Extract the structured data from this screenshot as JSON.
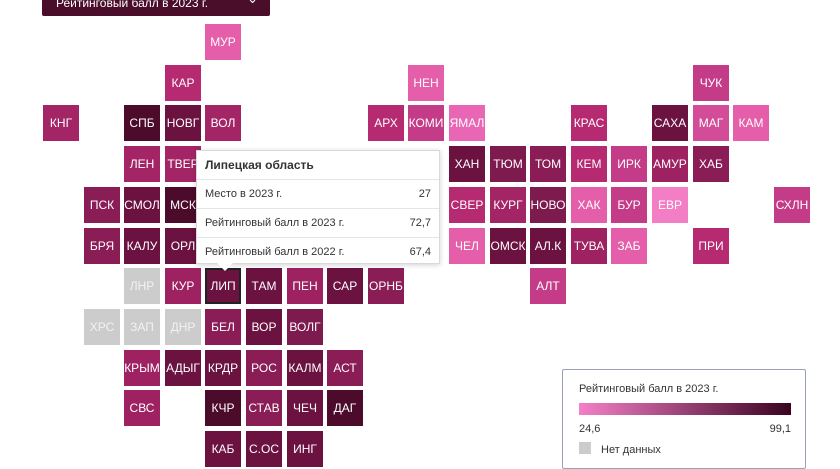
{
  "dropdown": {
    "label": "Рейтинговый балл в 2023 г."
  },
  "tooltip": {
    "title": "Липецкая область",
    "rows": [
      {
        "key": "Место в 2023 г.",
        "value": "27"
      },
      {
        "key": "Рейтинговый балл в 2023 г.",
        "value": "72,7"
      },
      {
        "key": "Рейтинговый балл в 2022 г.",
        "value": "67,4"
      }
    ]
  },
  "legend": {
    "title": "Рейтинговый балл в 2023 г.",
    "min": "24,6",
    "max": "99,1",
    "no_data": "Нет данных",
    "colors": {
      "low": "#f57fc8",
      "high": "#3a0320",
      "no_data": "#cccccc"
    }
  },
  "regions": [
    {
      "code": "МУР",
      "col": 5,
      "row": 0,
      "color": "#e55ea9"
    },
    {
      "code": "КАР",
      "col": 4,
      "row": 1,
      "color": "#b62a72"
    },
    {
      "code": "НЕН",
      "col": 10,
      "row": 1,
      "color": "#e55ea9"
    },
    {
      "code": "ЧУК",
      "col": 17,
      "row": 1,
      "color": "#c43b87"
    },
    {
      "code": "КНГ",
      "col": 1,
      "row": 2,
      "color": "#a42566"
    },
    {
      "code": "СПБ",
      "col": 3,
      "row": 2,
      "color": "#4d0b2c"
    },
    {
      "code": "НОВГ",
      "col": 4,
      "row": 2,
      "color": "#6b1240"
    },
    {
      "code": "ВОЛ",
      "col": 5,
      "row": 2,
      "color": "#a42566"
    },
    {
      "code": "АРХ",
      "col": 9,
      "row": 2,
      "color": "#b62a72"
    },
    {
      "code": "КОМИ",
      "col": 10,
      "row": 2,
      "color": "#c43b87"
    },
    {
      "code": "ЯМАЛ",
      "col": 11,
      "row": 2,
      "color": "#e866b3"
    },
    {
      "code": "КРАС",
      "col": 14,
      "row": 2,
      "color": "#b62a72"
    },
    {
      "code": "САХА",
      "col": 16,
      "row": 2,
      "color": "#6b1240"
    },
    {
      "code": "МАГ",
      "col": 17,
      "row": 2,
      "color": "#d24c97"
    },
    {
      "code": "КАМ",
      "col": 18,
      "row": 2,
      "color": "#e55ea9"
    },
    {
      "code": "ЛЕН",
      "col": 3,
      "row": 3,
      "color": "#a42566"
    },
    {
      "code": "ТВЕР",
      "col": 4,
      "row": 3,
      "color": "#a42566"
    },
    {
      "code": "ХАН",
      "col": 11,
      "row": 3,
      "color": "#6b1240"
    },
    {
      "code": "ТЮМ",
      "col": 12,
      "row": 3,
      "color": "#7d1a4e"
    },
    {
      "code": "ТОМ",
      "col": 13,
      "row": 3,
      "color": "#8a1d56"
    },
    {
      "code": "КЕМ",
      "col": 14,
      "row": 3,
      "color": "#b62a72"
    },
    {
      "code": "ИРК",
      "col": 15,
      "row": 3,
      "color": "#c43b87"
    },
    {
      "code": "АМУР",
      "col": 16,
      "row": 3,
      "color": "#9e2262"
    },
    {
      "code": "ХАБ",
      "col": 17,
      "row": 3,
      "color": "#8a1d56"
    },
    {
      "code": "ПСК",
      "col": 2,
      "row": 4,
      "color": "#8a1d56"
    },
    {
      "code": "СМОЛ",
      "col": 3,
      "row": 4,
      "color": "#6b1240"
    },
    {
      "code": "МСК",
      "col": 4,
      "row": 4,
      "color": "#4d0b2c"
    },
    {
      "code": "СВЕР",
      "col": 11,
      "row": 4,
      "color": "#b62a72"
    },
    {
      "code": "КУРГ",
      "col": 12,
      "row": 4,
      "color": "#a42566"
    },
    {
      "code": "НОВО",
      "col": 13,
      "row": 4,
      "color": "#7d1a4e"
    },
    {
      "code": "ХАК",
      "col": 14,
      "row": 4,
      "color": "#e55ea9"
    },
    {
      "code": "БУР",
      "col": 15,
      "row": 4,
      "color": "#c43b87"
    },
    {
      "code": "ЕВР",
      "col": 16,
      "row": 4,
      "color": "#f37ec6"
    },
    {
      "code": "СХЛН",
      "col": 19,
      "row": 4,
      "color": "#c43b87"
    },
    {
      "code": "БРЯ",
      "col": 2,
      "row": 5,
      "color": "#8a1d56"
    },
    {
      "code": "КАЛУ",
      "col": 3,
      "row": 5,
      "color": "#6b1240"
    },
    {
      "code": "ОРЛ",
      "col": 4,
      "row": 5,
      "color": "#6b1240"
    },
    {
      "code": "ЧЕЛ",
      "col": 11,
      "row": 5,
      "color": "#e55ea9"
    },
    {
      "code": "ОМСК",
      "col": 12,
      "row": 5,
      "color": "#6b1240"
    },
    {
      "code": "АЛ.К",
      "col": 13,
      "row": 5,
      "color": "#6b1240"
    },
    {
      "code": "ТУВА",
      "col": 14,
      "row": 5,
      "color": "#9e2262"
    },
    {
      "code": "ЗАБ",
      "col": 15,
      "row": 5,
      "color": "#e55ea9"
    },
    {
      "code": "ПРИ",
      "col": 17,
      "row": 5,
      "color": "#b62a72"
    },
    {
      "code": "ЛНР",
      "col": 3,
      "row": 6,
      "color": "#cccccc"
    },
    {
      "code": "КУР",
      "col": 4,
      "row": 6,
      "color": "#9e2262"
    },
    {
      "code": "ЛИП",
      "col": 5,
      "row": 6,
      "color": "#6b1240"
    },
    {
      "code": "ТАМ",
      "col": 6,
      "row": 6,
      "color": "#6b1240"
    },
    {
      "code": "ПЕН",
      "col": 7,
      "row": 6,
      "color": "#9e2262"
    },
    {
      "code": "САР",
      "col": 8,
      "row": 6,
      "color": "#6b1240"
    },
    {
      "code": "ОРНБ",
      "col": 9,
      "row": 6,
      "color": "#8a1d56"
    },
    {
      "code": "АЛТ",
      "col": 13,
      "row": 6,
      "color": "#c43b87"
    },
    {
      "code": "ХРС",
      "col": 2,
      "row": 7,
      "color": "#cccccc"
    },
    {
      "code": "ЗАП",
      "col": 3,
      "row": 7,
      "color": "#cccccc"
    },
    {
      "code": "ДНР",
      "col": 4,
      "row": 7,
      "color": "#cccccc"
    },
    {
      "code": "БЕЛ",
      "col": 5,
      "row": 7,
      "color": "#8a1d56"
    },
    {
      "code": "ВОР",
      "col": 6,
      "row": 7,
      "color": "#6b1240"
    },
    {
      "code": "ВОЛГ",
      "col": 7,
      "row": 7,
      "color": "#7d1a4e"
    },
    {
      "code": "КРЫМ",
      "col": 3,
      "row": 8,
      "color": "#9e2262"
    },
    {
      "code": "АДЫГ",
      "col": 4,
      "row": 8,
      "color": "#6b1240"
    },
    {
      "code": "КРДР",
      "col": 5,
      "row": 8,
      "color": "#6b1240"
    },
    {
      "code": "РОС",
      "col": 6,
      "row": 8,
      "color": "#8a1d56"
    },
    {
      "code": "КАЛМ",
      "col": 7,
      "row": 8,
      "color": "#6b1240"
    },
    {
      "code": "АСТ",
      "col": 8,
      "row": 8,
      "color": "#8a1d56"
    },
    {
      "code": "СВС",
      "col": 3,
      "row": 9,
      "color": "#9e2262"
    },
    {
      "code": "КЧР",
      "col": 5,
      "row": 9,
      "color": "#4d0b2c"
    },
    {
      "code": "СТАВ",
      "col": 6,
      "row": 9,
      "color": "#8a1d56"
    },
    {
      "code": "ЧЕЧ",
      "col": 7,
      "row": 9,
      "color": "#6b1240"
    },
    {
      "code": "ДАГ",
      "col": 8,
      "row": 9,
      "color": "#4d0b2c"
    },
    {
      "code": "КАБ",
      "col": 5,
      "row": 10,
      "color": "#6b1240"
    },
    {
      "code": "С.ОС",
      "col": 6,
      "row": 10,
      "color": "#6b1240"
    },
    {
      "code": "ИНГ",
      "col": 7,
      "row": 10,
      "color": "#6b1240"
    }
  ],
  "highlighted": "ЛИП"
}
